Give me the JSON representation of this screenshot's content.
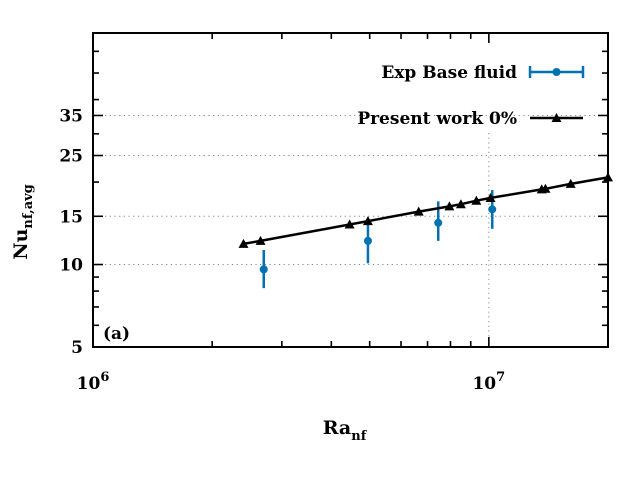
{
  "chart_data": {
    "type": "scatter",
    "xlabel": "Ra",
    "xlabel_sub": "nf",
    "ylabel": "Nu",
    "ylabel_sub": "nf,avg",
    "x_scale": "log",
    "y_scale": "log",
    "xlim": [
      1000000,
      20000000
    ],
    "ylim": [
      5,
      70
    ],
    "x_ticks": [
      {
        "value": 1000000,
        "base": "10",
        "exp": "6"
      },
      {
        "value": 10000000,
        "base": "10",
        "exp": "7"
      }
    ],
    "x_minor_ticks": [
      2000000,
      3000000,
      4000000,
      5000000,
      6000000,
      7000000,
      8000000,
      9000000
    ],
    "y_ticks": [
      {
        "value": 5,
        "label": "5"
      },
      {
        "value": 10,
        "label": "10"
      },
      {
        "value": 15,
        "label": "15"
      },
      {
        "value": 25,
        "label": "25"
      },
      {
        "value": 35,
        "label": "35"
      }
    ],
    "y_minor_ticks": [
      6,
      7,
      8,
      9,
      20,
      30,
      40,
      50,
      60
    ],
    "annotation": "(a)",
    "legend_position": "top-right",
    "series": [
      {
        "name": "Exp Base fluid",
        "style": "errorbars",
        "color": "#0072b2",
        "points": [
          {
            "x": 2700000,
            "y": 9.6,
            "ylow": 8.2,
            "yhigh": 11.3
          },
          {
            "x": 4950000,
            "y": 12.2,
            "ylow": 10.1,
            "yhigh": 14.2
          },
          {
            "x": 7450000,
            "y": 14.2,
            "ylow": 12.2,
            "yhigh": 17.0
          },
          {
            "x": 10200000,
            "y": 15.9,
            "ylow": 13.5,
            "yhigh": 18.7
          }
        ]
      },
      {
        "name": "Present work 0%",
        "style": "linespoints",
        "color": "#000000",
        "points": [
          {
            "x": 2400000,
            "y": 11.9
          },
          {
            "x": 2650000,
            "y": 12.2
          },
          {
            "x": 4450000,
            "y": 14.0
          },
          {
            "x": 4950000,
            "y": 14.4
          },
          {
            "x": 6650000,
            "y": 15.6
          },
          {
            "x": 7950000,
            "y": 16.3
          },
          {
            "x": 8500000,
            "y": 16.6
          },
          {
            "x": 9300000,
            "y": 17.1
          },
          {
            "x": 10100000,
            "y": 17.5
          },
          {
            "x": 13600000,
            "y": 18.8
          },
          {
            "x": 13900000,
            "y": 18.9
          },
          {
            "x": 16100000,
            "y": 19.7
          },
          {
            "x": 20000000,
            "y": 20.8
          }
        ]
      }
    ]
  }
}
